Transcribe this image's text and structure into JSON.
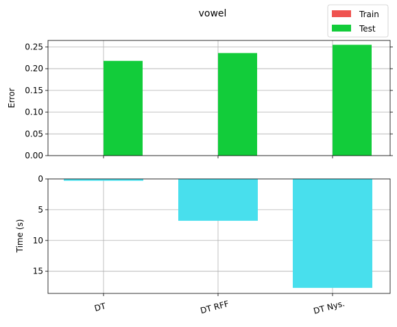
{
  "chart_data": [
    {
      "type": "bar",
      "title": "vowel",
      "xlabel": "",
      "ylabel": "Error",
      "categories": [
        "DT",
        "DT RFF",
        "DT Nys."
      ],
      "ylim": [
        0,
        0.265
      ],
      "yticks": [
        0.0,
        0.05,
        0.1,
        0.15,
        0.2,
        0.25
      ],
      "ytick_labels": [
        "0.00",
        "0.05",
        "0.10",
        "0.15",
        "0.20",
        "0.25"
      ],
      "grid": true,
      "legend_position": "top-right",
      "series": [
        {
          "name": "Train",
          "color": "#ef5350",
          "values": [
            0,
            0,
            0
          ]
        },
        {
          "name": "Test",
          "color": "#12cc3a",
          "values": [
            0.218,
            0.236,
            0.255
          ]
        }
      ]
    },
    {
      "type": "bar",
      "xlabel": "",
      "ylabel": "Time (s)",
      "categories": [
        "DT",
        "DT RFF",
        "DT Nys."
      ],
      "y_inverted": true,
      "ylim": [
        0,
        18.6
      ],
      "yticks": [
        0,
        5,
        10,
        15
      ],
      "ytick_labels": [
        "0",
        "5",
        "10",
        "15"
      ],
      "grid": true,
      "series": [
        {
          "name": "",
          "color": "#48dfed",
          "values": [
            0.3,
            6.8,
            17.7
          ]
        }
      ]
    }
  ]
}
